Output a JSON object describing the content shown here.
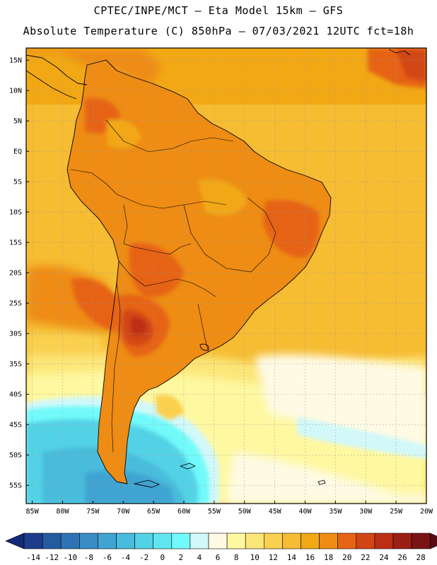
{
  "header": {
    "line1": "CPTEC/INPE/MCT –  Eta Model 15km – GFS",
    "line2": "Absolute Temperature (C) 850hPa – 07/03/2021 12UTC fct=18h"
  },
  "axes": {
    "lat_labels": [
      "15N",
      "10N",
      "5N",
      "EQ",
      "5S",
      "10S",
      "15S",
      "20S",
      "25S",
      "30S",
      "35S",
      "40S",
      "45S",
      "50S",
      "55S"
    ],
    "lat_values": [
      15,
      10,
      5,
      0,
      -5,
      -10,
      -15,
      -20,
      -25,
      -30,
      -35,
      -40,
      -45,
      -50,
      -55
    ],
    "lon_labels": [
      "85W",
      "80W",
      "75W",
      "70W",
      "65W",
      "60W",
      "55W",
      "50W",
      "45W",
      "40W",
      "35W",
      "30W",
      "25W",
      "20W"
    ],
    "lon_values": [
      -85,
      -80,
      -75,
      -70,
      -65,
      -60,
      -55,
      -50,
      -45,
      -40,
      -35,
      -30,
      -25,
      -20
    ],
    "lat_range": [
      -58,
      17
    ],
    "lon_range": [
      -86,
      -20
    ]
  },
  "colorbar": {
    "labels": [
      "-14",
      "-12",
      "-10",
      "-8",
      "-6",
      "-4",
      "-2",
      "0",
      "2",
      "4",
      "6",
      "8",
      "10",
      "12",
      "14",
      "16",
      "18",
      "20",
      "22",
      "24",
      "26",
      "28"
    ],
    "colors": [
      "#1e3c8c",
      "#245aa0",
      "#2e74b4",
      "#3a8cc4",
      "#40a4d2",
      "#48bcdc",
      "#52d2e6",
      "#60e6f0",
      "#72fafa",
      "#d2f8fa",
      "#fefae4",
      "#fef8a0",
      "#fce678",
      "#fad050",
      "#f6bc32",
      "#f2a814",
      "#ee8c14",
      "#e66414",
      "#d24614",
      "#bc2e14",
      "#9c1e14",
      "#7a1414"
    ],
    "under_color": "#142878",
    "over_color": "#5a0a14"
  }
}
